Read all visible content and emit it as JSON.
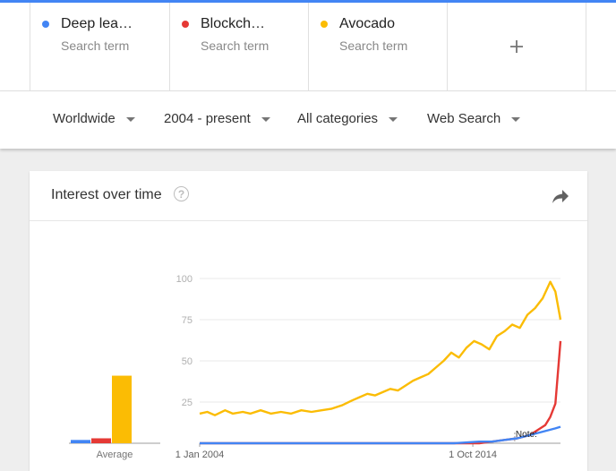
{
  "terms": [
    {
      "name": "Deep lea…",
      "subtitle": "Search term",
      "color": "#4285f4"
    },
    {
      "name": "Blockch…",
      "subtitle": "Search term",
      "color": "#e53935"
    },
    {
      "name": "Avocado",
      "subtitle": "Search term",
      "color": "#fbbc04"
    }
  ],
  "add_term_icon": "plus-icon",
  "filters": {
    "region": "Worldwide",
    "time": "2004 - present",
    "category": "All categories",
    "search_type": "Web Search"
  },
  "card": {
    "title": "Interest over time",
    "help_icon": "question-mark-icon",
    "share_icon": "share-arrow-icon"
  },
  "chart_data": [
    {
      "type": "bar",
      "categories": [
        "Deep lea…",
        "Blockch…",
        "Avocado"
      ],
      "values": [
        2,
        3,
        41
      ],
      "colors": [
        "#4285f4",
        "#e53935",
        "#fbbc04"
      ],
      "xlabel": "Average",
      "ylim": [
        0,
        100
      ]
    },
    {
      "type": "line",
      "x_tick_labels": [
        "1 Jan 2004",
        "1 Oct 2014"
      ],
      "y_ticks": [
        25,
        50,
        75,
        100
      ],
      "ylim": [
        0,
        100
      ],
      "x_range": [
        2004.0,
        2018.2
      ],
      "grid": true,
      "annotation": "Note:",
      "series": [
        {
          "name": "Avocado",
          "color": "#fbbc04",
          "x": [
            2004.0,
            2004.3,
            2004.6,
            2005.0,
            2005.3,
            2005.7,
            2006.0,
            2006.4,
            2006.8,
            2007.2,
            2007.6,
            2008.0,
            2008.4,
            2008.8,
            2009.2,
            2009.6,
            2010.0,
            2010.3,
            2010.6,
            2010.9,
            2011.2,
            2011.5,
            2011.8,
            2012.1,
            2012.4,
            2012.7,
            2013.0,
            2013.3,
            2013.6,
            2013.9,
            2014.2,
            2014.5,
            2014.8,
            2015.1,
            2015.4,
            2015.7,
            2016.0,
            2016.3,
            2016.6,
            2016.9,
            2017.2,
            2017.5,
            2017.8,
            2018.0,
            2018.2
          ],
          "y": [
            18,
            19,
            17,
            20,
            18,
            19,
            18,
            20,
            18,
            19,
            18,
            20,
            19,
            20,
            21,
            23,
            26,
            28,
            30,
            29,
            31,
            33,
            32,
            35,
            38,
            40,
            42,
            46,
            50,
            55,
            52,
            58,
            62,
            60,
            57,
            65,
            68,
            72,
            70,
            78,
            82,
            88,
            98,
            92,
            75
          ]
        },
        {
          "name": "Blockch…",
          "color": "#e53935",
          "x": [
            2004.0,
            2010.0,
            2014.0,
            2015.0,
            2015.5,
            2016.0,
            2016.5,
            2017.0,
            2017.3,
            2017.6,
            2017.8,
            2018.0,
            2018.2
          ],
          "y": [
            0,
            0,
            0,
            0,
            1,
            2,
            3,
            5,
            8,
            11,
            16,
            24,
            62
          ]
        },
        {
          "name": "Deep lea…",
          "color": "#4285f4",
          "x": [
            2004.0,
            2010.0,
            2013.0,
            2014.0,
            2015.0,
            2015.5,
            2016.0,
            2016.5,
            2017.0,
            2017.5,
            2018.0,
            2018.2
          ],
          "y": [
            0,
            0,
            0,
            0,
            1,
            1,
            2,
            3,
            5,
            7,
            9,
            10
          ]
        }
      ]
    }
  ]
}
